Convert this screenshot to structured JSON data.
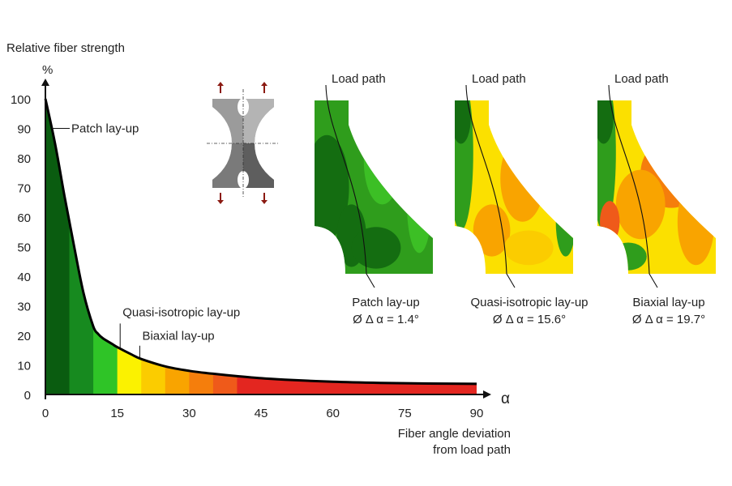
{
  "chart_data": {
    "type": "area",
    "ylabel": "Relative fiber strength",
    "yunit": "%",
    "xsymbol": "α",
    "xlabel_line1": "Fiber angle deviation",
    "xlabel_line2": "from load path",
    "xlim": [
      0,
      90
    ],
    "ylim": [
      0,
      100
    ],
    "xticks": [
      "0",
      "15",
      "30",
      "45",
      "60",
      "75",
      "90"
    ],
    "yticks": [
      "0",
      "10",
      "20",
      "30",
      "40",
      "50",
      "60",
      "70",
      "80",
      "90",
      "100"
    ],
    "curve": {
      "x": [
        0,
        2,
        4,
        6,
        8,
        10,
        11,
        12,
        14,
        15,
        18,
        20,
        25,
        30,
        35,
        40,
        45,
        50,
        60,
        70,
        80,
        90
      ],
      "y": [
        100,
        85,
        67,
        50,
        34,
        23,
        20.5,
        19,
        17,
        16,
        13.5,
        12,
        9.5,
        8,
        7,
        6.2,
        5.5,
        5,
        4.3,
        3.9,
        3.7,
        3.6
      ]
    },
    "bands": [
      {
        "from": 0,
        "to": 5,
        "color": "#0a5c10"
      },
      {
        "from": 5,
        "to": 10,
        "color": "#178a1f"
      },
      {
        "from": 10,
        "to": 15,
        "color": "#2fc427"
      },
      {
        "from": 15,
        "to": 20,
        "color": "#fbf200"
      },
      {
        "from": 20,
        "to": 25,
        "color": "#fbcc00"
      },
      {
        "from": 25,
        "to": 30,
        "color": "#f9a400"
      },
      {
        "from": 30,
        "to": 35,
        "color": "#f57e0c"
      },
      {
        "from": 35,
        "to": 40,
        "color": "#ef5a1a"
      },
      {
        "from": 40,
        "to": 90,
        "color": "#e32620"
      }
    ],
    "annotations": [
      {
        "text": "Patch lay-up",
        "x": 1.2
      },
      {
        "text": "Quasi-isotropic lay-up",
        "x": 15.6
      },
      {
        "text": "Biaxial lay-up",
        "x": 19.7
      }
    ]
  },
  "specimen_arrow_color": "#8b1a12",
  "panels": [
    {
      "load_label": "Load path",
      "name": "Patch lay-up",
      "stat": "Ø Δ α = 1.4°"
    },
    {
      "load_label": "Load path",
      "name": "Quasi-isotropic lay-up",
      "stat": "Ø Δ α = 15.6°"
    },
    {
      "load_label": "Load path",
      "name": "Biaxial lay-up",
      "stat": "Ø Δ α = 19.7°"
    }
  ]
}
